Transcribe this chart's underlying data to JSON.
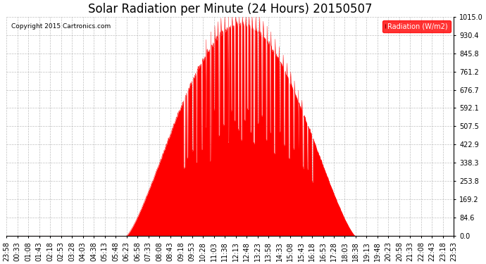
{
  "title": "Solar Radiation per Minute (24 Hours) 20150507",
  "copyright_text": "Copyright 2015 Cartronics.com",
  "legend_label": "Radiation (W/m2)",
  "ytick_labels": [
    "0.0",
    "84.6",
    "169.2",
    "253.8",
    "338.3",
    "422.9",
    "507.5",
    "592.1",
    "676.7",
    "761.2",
    "845.8",
    "930.4",
    "1015.0"
  ],
  "ytick_values": [
    0.0,
    84.6,
    169.2,
    253.8,
    338.3,
    422.9,
    507.5,
    592.1,
    676.7,
    761.2,
    845.8,
    930.4,
    1015.0
  ],
  "ylim": [
    0.0,
    1015.0
  ],
  "fill_color": "#ff0000",
  "line_color": "#ff0000",
  "bg_color": "#ffffff",
  "grid_color": "#b0b0b0",
  "title_fontsize": 12,
  "axis_fontsize": 7,
  "xtick_labels": [
    "23:58",
    "00:33",
    "01:08",
    "01:43",
    "02:18",
    "02:53",
    "03:28",
    "04:03",
    "04:38",
    "05:13",
    "05:48",
    "06:23",
    "06:58",
    "07:33",
    "08:08",
    "08:43",
    "09:18",
    "09:53",
    "10:28",
    "11:03",
    "11:38",
    "12:13",
    "12:48",
    "13:23",
    "13:58",
    "14:33",
    "15:08",
    "15:43",
    "16:18",
    "16:53",
    "17:28",
    "18:03",
    "18:38",
    "19:13",
    "19:48",
    "20:23",
    "20:58",
    "21:33",
    "22:08",
    "22:43",
    "23:18",
    "23:53"
  ],
  "n_minutes": 1440,
  "sunrise_cal": 383,
  "sunset_cal": 1120,
  "peak_cal": 700,
  "peak_value": 980
}
